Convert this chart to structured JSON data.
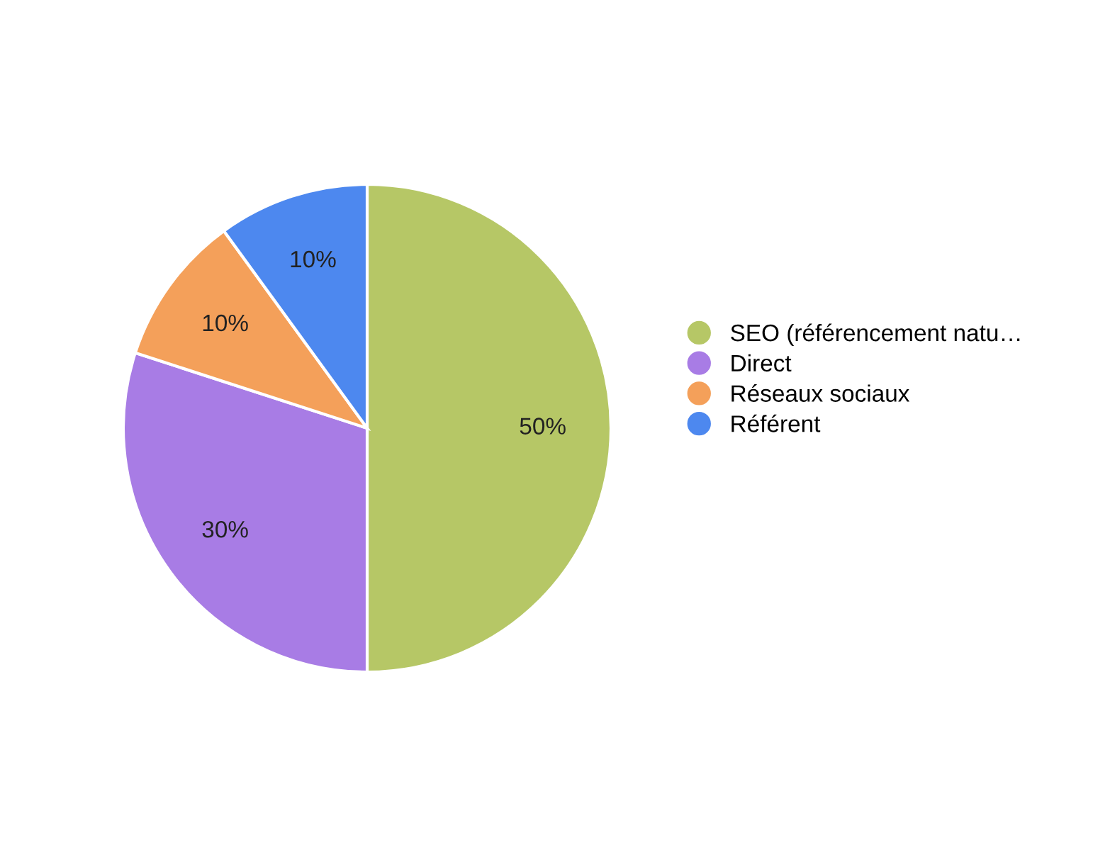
{
  "chart_data": {
    "type": "pie",
    "categories": [
      "SEO (référencement natu…",
      "Direct",
      "Réseaux sociaux",
      "Référent"
    ],
    "values": [
      50,
      30,
      10,
      10
    ],
    "colors": [
      "#b6c766",
      "#a87ce5",
      "#f4a05a",
      "#4d88ef"
    ],
    "value_labels": [
      "50%",
      "30%",
      "10%",
      "10%"
    ],
    "legend": "right"
  }
}
